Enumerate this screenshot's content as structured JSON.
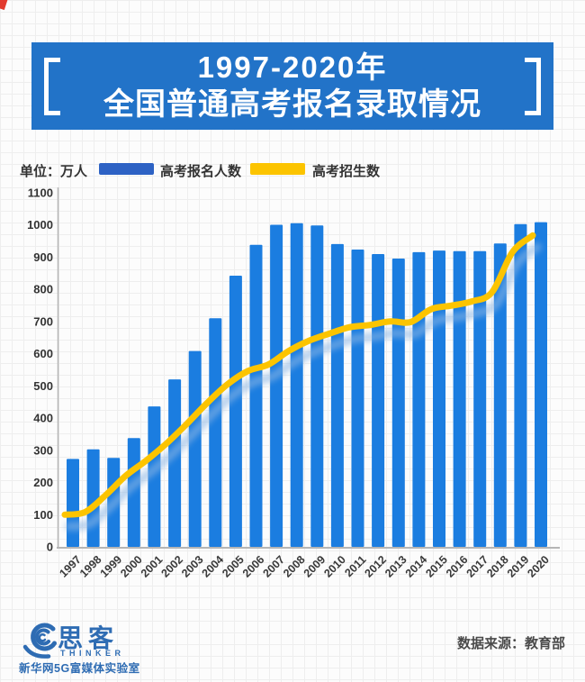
{
  "page": {
    "background_color": "#fcfcfc",
    "grid_line_color": "#eeeeee",
    "corner_mark_color": "#e23a2e"
  },
  "title_banner": {
    "line1": "1997-2020年",
    "line2": "全国普通高考报名录取情况",
    "bg_color": "#2273c8",
    "text_color": "#ffffff"
  },
  "legend": {
    "unit_label": "单位：万人",
    "items": [
      {
        "label": "高考报名人数",
        "color": "#2d62c4"
      },
      {
        "label": "高考招生数",
        "color": "#fcc400"
      }
    ]
  },
  "chart_data": {
    "type": "bar",
    "title": "1997-2020年全国普通高考报名录取情况",
    "xlabel": "",
    "ylabel": "万人",
    "ylim": [
      0,
      1100
    ],
    "ytick_step": 100,
    "grid": "faint graph-paper background",
    "legend_position": "top",
    "categories": [
      "1997",
      "1998",
      "1999",
      "2000",
      "2001",
      "2002",
      "2003",
      "2004",
      "2005",
      "2006",
      "2007",
      "2008",
      "2009",
      "2010",
      "2011",
      "2012",
      "2013",
      "2014",
      "2015",
      "2016",
      "2017",
      "2018",
      "2019",
      "2020"
    ],
    "series": [
      {
        "name": "高考报名人数",
        "type": "bar",
        "color": "#1b7de0",
        "values": [
          273,
          303,
          276,
          338,
          436,
          520,
          608,
          710,
          842,
          938,
          1000,
          1005,
          998,
          940,
          923,
          909,
          895,
          915,
          920,
          918,
          918,
          942,
          1002,
          1008
        ]
      },
      {
        "name": "高考招生数",
        "type": "line",
        "color": "#fcc400",
        "shadow_color": "#8cb6e4",
        "values": [
          100,
          108,
          160,
          221,
          268,
          321,
          382,
          447,
          505,
          546,
          566,
          608,
          640,
          662,
          682,
          689,
          700,
          698,
          738,
          749,
          762,
          791,
          915,
          967
        ]
      }
    ],
    "axis": {
      "tick_label_color": "#3a3a3a",
      "axis_line_color": "#b5b5b5",
      "x_label_rotation_deg": -45
    }
  },
  "footer": {
    "brand_cn": "思客",
    "brand_en": "THINKER",
    "brand_sub": "新华网5G富媒体实验室",
    "brand_color": "#2e6cb3",
    "source_text": "数据来源：教育部",
    "source_color": "#4a4a4a"
  }
}
